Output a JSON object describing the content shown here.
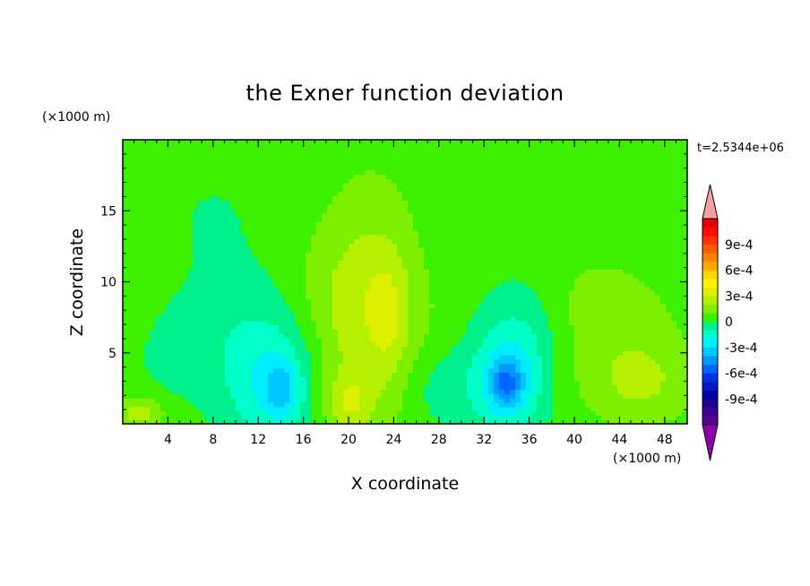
{
  "chart_data": {
    "type": "heatmap",
    "title": "the Exner function deviation",
    "xlabel": "X coordinate",
    "ylabel": "Z coordinate",
    "x_unit": "(×1000 m)",
    "y_unit": "(×1000 m)",
    "time_label": "t=2.5344e+06",
    "xlim": [
      0,
      50
    ],
    "ylim": [
      0,
      20
    ],
    "x_ticks": [
      4,
      8,
      12,
      16,
      20,
      24,
      28,
      32,
      36,
      40,
      44,
      48
    ],
    "x_tick_labels": [
      "4",
      "8",
      "12",
      "16",
      "20",
      "24",
      "28",
      "32",
      "36",
      "40",
      "44",
      "48"
    ],
    "y_ticks": [
      5,
      10,
      15
    ],
    "y_tick_labels": [
      "5",
      "10",
      "15"
    ],
    "colorbar": {
      "levels": [
        -0.0012,
        -0.0011,
        -0.001,
        -0.0009,
        -0.0008,
        -0.0007,
        -0.0006,
        -0.0005,
        -0.0004,
        -0.0003,
        -0.0002,
        -0.0001,
        0,
        0.0001,
        0.0002,
        0.0003,
        0.0004,
        0.0005,
        0.0006,
        0.0007,
        0.0008,
        0.0009,
        0.001,
        0.0011,
        0.0012
      ],
      "colors": [
        "#5a0090",
        "#420090",
        "#1c0090",
        "#0000a8",
        "#0018c8",
        "#0032e6",
        "#0064ff",
        "#0096ff",
        "#00c8ff",
        "#00ecff",
        "#00ffc8",
        "#00f08c",
        "#3cf000",
        "#7cf000",
        "#b4f000",
        "#dcf000",
        "#fff000",
        "#ffd200",
        "#ffaa00",
        "#ff8200",
        "#ff5a00",
        "#ff3200",
        "#ff0a00",
        "#e60000"
      ],
      "under_color": "#8c00a8",
      "over_color": "#f4a0a0",
      "tick_values": [
        -0.0009,
        -0.0006,
        -0.0003,
        0,
        0.0003,
        0.0006,
        0.0009
      ],
      "tick_labels": [
        "-9e-4",
        "-6e-4",
        "-3e-4",
        "0",
        "3e-4",
        "6e-4",
        "9e-4"
      ]
    },
    "background_value": 5e-05,
    "features": [
      {
        "x": 13.5,
        "z": 2.8,
        "value": -0.00025,
        "sx": 3.0,
        "sz": 3.5
      },
      {
        "x": 14.0,
        "z": 2.5,
        "value": -0.0002,
        "sx": 1.0,
        "sz": 1.3
      },
      {
        "x": 9.5,
        "z": 6.0,
        "value": -8e-05,
        "sx": 4.0,
        "sz": 3.5
      },
      {
        "x": 4.0,
        "z": 4.5,
        "value": -5e-05,
        "sx": 2.5,
        "sz": 2.5
      },
      {
        "x": 34.0,
        "z": 3.0,
        "value": -0.0003,
        "sx": 2.5,
        "sz": 3.0
      },
      {
        "x": 34.0,
        "z": 2.9,
        "value": -0.0003,
        "sx": 1.0,
        "sz": 1.2
      },
      {
        "x": 36.0,
        "z": 7.0,
        "value": -0.0001,
        "sx": 2.5,
        "sz": 3.0
      },
      {
        "x": 28.0,
        "z": 2.5,
        "value": -0.0001,
        "sx": 2.0,
        "sz": 2.0
      },
      {
        "x": 22.5,
        "z": 9.0,
        "value": 0.00018,
        "sx": 3.2,
        "sz": 5.5
      },
      {
        "x": 23.5,
        "z": 7.5,
        "value": 0.00012,
        "sx": 1.2,
        "sz": 3.0
      },
      {
        "x": 18.5,
        "z": 7.0,
        "value": 0.0001,
        "sx": 3.0,
        "sz": 5.0
      },
      {
        "x": 46.0,
        "z": 3.0,
        "value": 0.00015,
        "sx": 3.0,
        "sz": 2.0
      },
      {
        "x": 42.0,
        "z": 7.5,
        "value": 0.0001,
        "sx": 5.0,
        "sz": 4.0
      },
      {
        "x": 30.0,
        "z": 14.0,
        "value": -4e-05,
        "sx": 4.0,
        "sz": 3.0
      },
      {
        "x": 8.0,
        "z": 15.0,
        "value": -5e-05,
        "sx": 6.0,
        "sz": 4.0
      },
      {
        "x": 44.0,
        "z": 15.0,
        "value": -4e-05,
        "sx": 5.0,
        "sz": 3.0
      },
      {
        "x": 17.0,
        "z": 18.0,
        "value": 0.0,
        "sx": 4.0,
        "sz": 2.0
      },
      {
        "x": 1.5,
        "z": 0.8,
        "value": 0.0002,
        "sx": 1.5,
        "sz": 0.8
      },
      {
        "x": 20.0,
        "z": 1.5,
        "value": 0.0002,
        "sx": 1.5,
        "sz": 1.5
      }
    ]
  }
}
